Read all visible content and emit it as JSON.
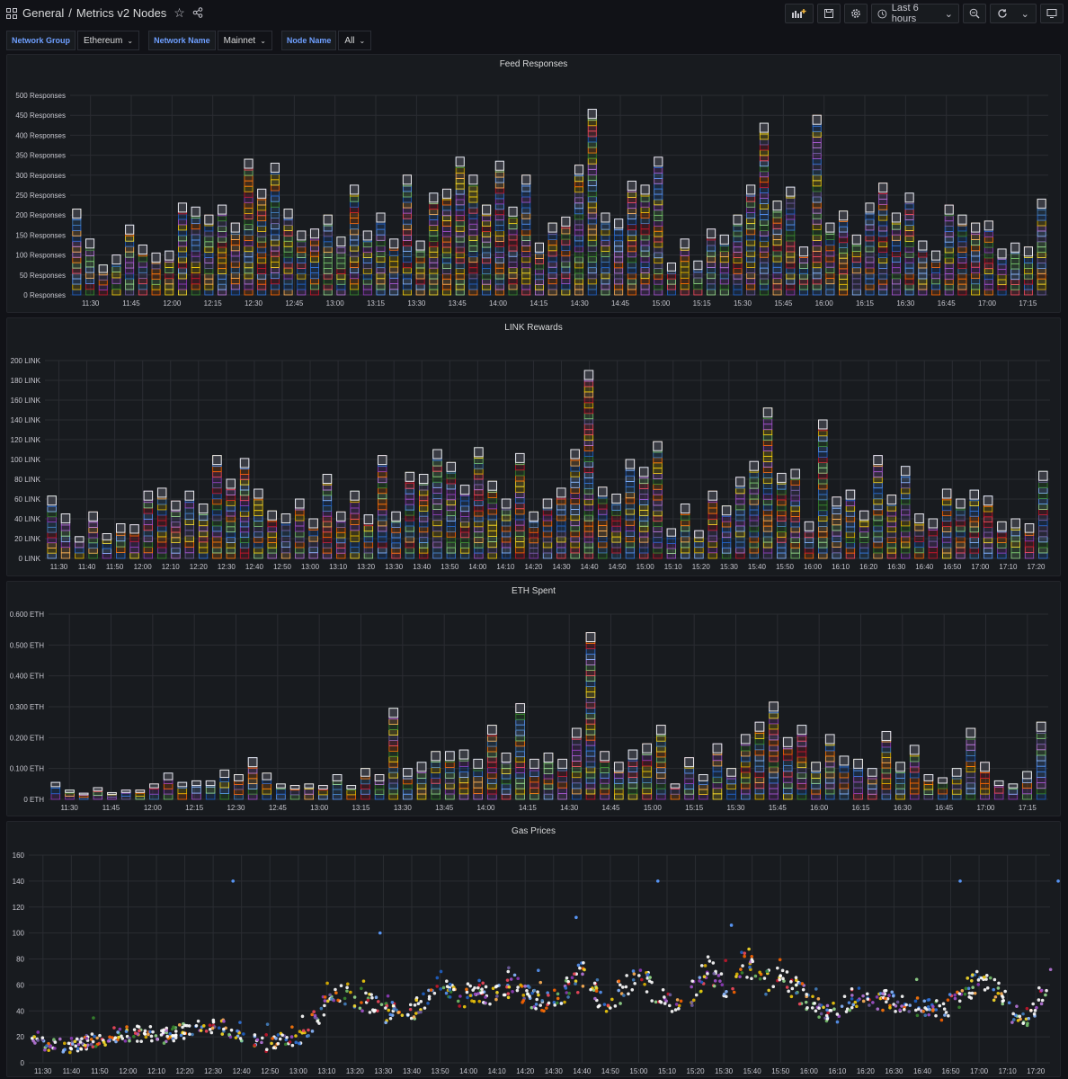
{
  "header": {
    "breadcrumb_root": "General",
    "breadcrumb_sep": "/",
    "dashboard_title": "Metrics v2 Nodes",
    "time_range": "Last 6 hours"
  },
  "variables": [
    {
      "label": "Network Group",
      "value": "Ethereum"
    },
    {
      "label": "Network Name",
      "value": "Mainnet"
    },
    {
      "label": "Node Name",
      "value": "All"
    }
  ],
  "chart_data": [
    {
      "type": "bar",
      "title": "Feed Responses",
      "unit": " Responses",
      "ylim": [
        0,
        500
      ],
      "yticks": [
        0,
        50,
        100,
        150,
        200,
        250,
        300,
        350,
        400,
        450,
        500
      ],
      "xticks": [
        "11:30",
        "11:45",
        "12:00",
        "12:15",
        "12:30",
        "12:45",
        "13:00",
        "13:15",
        "13:30",
        "13:45",
        "14:00",
        "14:15",
        "14:30",
        "14:45",
        "15:00",
        "15:15",
        "15:30",
        "15:45",
        "16:00",
        "16:15",
        "16:30",
        "16:45",
        "17:00",
        "17:15"
      ],
      "values": [
        215,
        140,
        75,
        100,
        175,
        125,
        105,
        110,
        230,
        220,
        200,
        225,
        180,
        340,
        265,
        330,
        215,
        160,
        165,
        200,
        145,
        275,
        160,
        205,
        140,
        300,
        135,
        255,
        265,
        345,
        300,
        225,
        335,
        220,
        300,
        130,
        180,
        195,
        325,
        465,
        205,
        190,
        285,
        275,
        345,
        80,
        140,
        85,
        165,
        150,
        200,
        275,
        430,
        235,
        270,
        120,
        450,
        180,
        210,
        150,
        230,
        280,
        205,
        255,
        135,
        110,
        225,
        200,
        180,
        185,
        115,
        130,
        120,
        240
      ]
    },
    {
      "type": "bar",
      "title": "LINK Rewards",
      "unit": " LINK",
      "ylim": [
        0,
        200
      ],
      "yticks": [
        0,
        20,
        40,
        60,
        80,
        100,
        120,
        140,
        160,
        180,
        200
      ],
      "xticks": [
        "11:30",
        "11:40",
        "11:50",
        "12:00",
        "12:10",
        "12:20",
        "12:30",
        "12:40",
        "12:50",
        "13:00",
        "13:10",
        "13:20",
        "13:30",
        "13:40",
        "13:50",
        "14:00",
        "14:10",
        "14:20",
        "14:30",
        "14:40",
        "14:50",
        "15:00",
        "15:10",
        "15:20",
        "15:30",
        "15:40",
        "15:50",
        "16:00",
        "16:10",
        "16:20",
        "16:30",
        "16:40",
        "16:50",
        "17:00",
        "17:10",
        "17:20"
      ],
      "values": [
        63,
        45,
        22,
        47,
        25,
        35,
        34,
        68,
        71,
        58,
        68,
        55,
        104,
        80,
        101,
        70,
        48,
        45,
        60,
        40,
        85,
        47,
        68,
        44,
        104,
        47,
        87,
        85,
        110,
        97,
        74,
        112,
        78,
        60,
        106,
        47,
        60,
        71,
        110,
        190,
        72,
        65,
        100,
        92,
        118,
        30,
        55,
        28,
        68,
        53,
        82,
        98,
        152,
        86,
        90,
        37,
        140,
        62,
        69,
        48,
        104,
        64,
        93,
        45,
        40,
        70,
        60,
        69,
        63,
        37,
        40,
        35,
        88
      ]
    },
    {
      "type": "bar",
      "title": "ETH Spent",
      "unit": " ETH",
      "ylim": [
        0,
        0.6
      ],
      "yticks": [
        0,
        0.1,
        0.2,
        0.3,
        0.4,
        0.5,
        0.6
      ],
      "ytick_labels": [
        "0 ETH",
        "0.100 ETH",
        "0.200 ETH",
        "0.300 ETH",
        "0.400 ETH",
        "0.500 ETH",
        "0.600 ETH"
      ],
      "xticks": [
        "11:30",
        "11:45",
        "12:00",
        "12:15",
        "12:30",
        "12:45",
        "13:00",
        "13:15",
        "13:30",
        "13:45",
        "14:00",
        "14:15",
        "14:30",
        "14:45",
        "15:00",
        "15:15",
        "15:30",
        "15:45",
        "16:00",
        "16:15",
        "16:30",
        "16:45",
        "17:00",
        "17:15"
      ],
      "values": [
        0.055,
        0.03,
        0.02,
        0.038,
        0.022,
        0.03,
        0.03,
        0.05,
        0.085,
        0.055,
        0.06,
        0.06,
        0.095,
        0.08,
        0.135,
        0.085,
        0.05,
        0.045,
        0.05,
        0.045,
        0.08,
        0.045,
        0.1,
        0.08,
        0.295,
        0.1,
        0.12,
        0.155,
        0.155,
        0.16,
        0.13,
        0.24,
        0.15,
        0.31,
        0.13,
        0.15,
        0.13,
        0.23,
        0.54,
        0.155,
        0.12,
        0.16,
        0.18,
        0.24,
        0.05,
        0.135,
        0.08,
        0.18,
        0.1,
        0.21,
        0.25,
        0.315,
        0.2,
        0.24,
        0.12,
        0.21,
        0.14,
        0.13,
        0.1,
        0.22,
        0.12,
        0.175,
        0.08,
        0.07,
        0.1,
        0.23,
        0.12,
        0.06,
        0.05,
        0.09,
        0.25
      ]
    },
    {
      "type": "scatter",
      "title": "Gas Prices",
      "ylim": [
        0,
        160
      ],
      "yticks": [
        0,
        20,
        40,
        60,
        80,
        100,
        120,
        140,
        160
      ],
      "xticks": [
        "11:30",
        "11:40",
        "11:50",
        "12:00",
        "12:10",
        "12:20",
        "12:30",
        "12:40",
        "12:50",
        "13:00",
        "13:10",
        "13:20",
        "13:30",
        "13:40",
        "13:50",
        "14:00",
        "14:10",
        "14:20",
        "14:30",
        "14:40",
        "14:50",
        "15:00",
        "15:10",
        "15:20",
        "15:30",
        "15:40",
        "15:50",
        "16:00",
        "16:10",
        "16:20",
        "16:30",
        "16:40",
        "16:50",
        "17:00",
        "17:10",
        "17:20"
      ],
      "trend": [
        20,
        14,
        13,
        15,
        18,
        22,
        23,
        20,
        22,
        26,
        30,
        27,
        20,
        16,
        17,
        19,
        33,
        55,
        52,
        48,
        40,
        38,
        45,
        65,
        50,
        55,
        52,
        60,
        50,
        47,
        55,
        70,
        46,
        52,
        72,
        50,
        47,
        52,
        75,
        55,
        80,
        60,
        70,
        55,
        42,
        38,
        50,
        47,
        48,
        46,
        42,
        40,
        52,
        62,
        55,
        38,
        35,
        65
      ],
      "outliers": [
        [
          12.5,
          140
        ],
        [
          15.1,
          140
        ],
        [
          16.95,
          140
        ],
        [
          17.55,
          140
        ],
        [
          13.4,
          100
        ],
        [
          14.6,
          112
        ],
        [
          15.55,
          106
        ]
      ]
    }
  ]
}
